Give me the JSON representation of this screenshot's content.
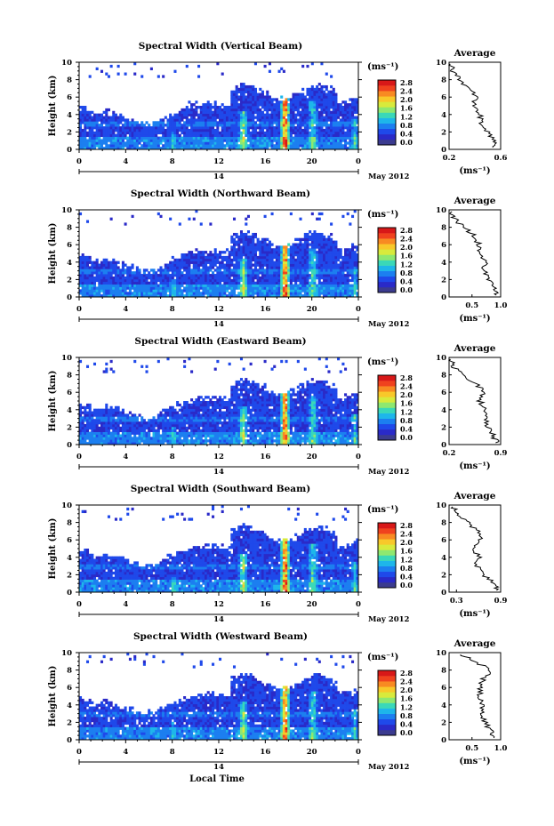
{
  "figure": {
    "xlabel": "Local Time",
    "day_label": "14",
    "month_label": "May 2012",
    "ylabel": "Height (km)",
    "unit_label": "(ms⁻¹)",
    "avg_title": "Average",
    "avg_unit": "(ms⁻¹)"
  },
  "colorbar": {
    "ticks": [
      "0.0",
      "0.4",
      "0.8",
      "1.2",
      "1.6",
      "2.0",
      "2.4",
      "2.8"
    ],
    "colors": [
      "#3b3b8f",
      "#2a2ac8",
      "#1f49ea",
      "#1c7ff0",
      "#1eb6ea",
      "#3ad8b8",
      "#8ee870",
      "#d8ea3c",
      "#f8c82a",
      "#f88a22",
      "#f0421e",
      "#d81818"
    ]
  },
  "chart_data": [
    {
      "type": "heatmap",
      "title": "Spectral Width (Vertical Beam)",
      "xlabel": "Local Time",
      "ylabel": "Height (km)",
      "xlim": [
        0,
        24
      ],
      "ylim": [
        0,
        10
      ],
      "x_ticks": [
        "0",
        "4",
        "8",
        "12",
        "16",
        "20",
        "0"
      ],
      "y_ticks": [
        "0",
        "2",
        "4",
        "6",
        "8",
        "10"
      ],
      "colorbar_range": [
        0.0,
        2.8
      ],
      "average_profile": {
        "xlim": [
          0.2,
          0.6
        ],
        "x_ticks": [
          "0.2",
          "0.6"
        ],
        "points": [
          [
            0.55,
            0.2
          ],
          [
            0.56,
            1.0
          ],
          [
            0.5,
            2.0
          ],
          [
            0.44,
            3.0
          ],
          [
            0.45,
            4.0
          ],
          [
            0.38,
            5.0
          ],
          [
            0.42,
            6.0
          ],
          [
            0.35,
            7.0
          ],
          [
            0.28,
            8.0
          ],
          [
            0.23,
            9.0
          ],
          [
            0.21,
            9.8
          ]
        ]
      }
    },
    {
      "type": "heatmap",
      "title": "Spectral Width (Northward Beam)",
      "xlabel": "Local Time",
      "ylabel": "Height (km)",
      "xlim": [
        0,
        24
      ],
      "ylim": [
        0,
        10
      ],
      "x_ticks": [
        "0",
        "4",
        "8",
        "12",
        "16",
        "20",
        "0"
      ],
      "y_ticks": [
        "0",
        "2",
        "4",
        "6",
        "8",
        "10"
      ],
      "colorbar_range": [
        0.0,
        2.8
      ],
      "average_profile": {
        "xlim": [
          0.1,
          1.0
        ],
        "x_ticks": [
          "0.5",
          "1.0"
        ],
        "points": [
          [
            0.95,
            0.2
          ],
          [
            0.88,
            1.0
          ],
          [
            0.8,
            2.0
          ],
          [
            0.7,
            3.0
          ],
          [
            0.72,
            4.0
          ],
          [
            0.6,
            5.0
          ],
          [
            0.62,
            6.0
          ],
          [
            0.55,
            7.0
          ],
          [
            0.35,
            8.0
          ],
          [
            0.2,
            9.0
          ],
          [
            0.15,
            9.8
          ]
        ]
      }
    },
    {
      "type": "heatmap",
      "title": "Spectral Width (Eastward Beam)",
      "xlabel": "Local Time",
      "ylabel": "Height (km)",
      "xlim": [
        0,
        24
      ],
      "ylim": [
        0,
        10
      ],
      "x_ticks": [
        "0",
        "4",
        "8",
        "12",
        "16",
        "20",
        "0"
      ],
      "y_ticks": [
        "0",
        "2",
        "4",
        "6",
        "8",
        "10"
      ],
      "colorbar_range": [
        0.0,
        2.8
      ],
      "average_profile": {
        "xlim": [
          0.2,
          0.9
        ],
        "x_ticks": [
          "0.2",
          "0.9"
        ],
        "points": [
          [
            0.85,
            0.2
          ],
          [
            0.8,
            1.0
          ],
          [
            0.72,
            2.0
          ],
          [
            0.68,
            3.0
          ],
          [
            0.7,
            4.0
          ],
          [
            0.62,
            5.0
          ],
          [
            0.66,
            6.0
          ],
          [
            0.58,
            7.0
          ],
          [
            0.38,
            8.0
          ],
          [
            0.25,
            9.0
          ],
          [
            0.22,
            9.8
          ]
        ]
      }
    },
    {
      "type": "heatmap",
      "title": "Spectral Width (Southward Beam)",
      "xlabel": "Local Time",
      "ylabel": "Height (km)",
      "xlim": [
        0,
        24
      ],
      "ylim": [
        0,
        10
      ],
      "x_ticks": [
        "0",
        "4",
        "8",
        "12",
        "16",
        "20",
        "0"
      ],
      "y_ticks": [
        "0",
        "2",
        "4",
        "6",
        "8",
        "10"
      ],
      "colorbar_range": [
        0.0,
        2.8
      ],
      "average_profile": {
        "xlim": [
          0.2,
          0.9
        ],
        "x_ticks": [
          "0.3",
          "0.9"
        ],
        "points": [
          [
            0.86,
            0.2
          ],
          [
            0.8,
            1.0
          ],
          [
            0.66,
            2.0
          ],
          [
            0.58,
            3.0
          ],
          [
            0.6,
            4.0
          ],
          [
            0.55,
            5.0
          ],
          [
            0.62,
            6.0
          ],
          [
            0.6,
            7.0
          ],
          [
            0.45,
            8.0
          ],
          [
            0.3,
            9.0
          ],
          [
            0.25,
            9.8
          ]
        ]
      }
    },
    {
      "type": "heatmap",
      "title": "Spectral Width (Westward Beam)",
      "xlabel": "Local Time",
      "ylabel": "Height (km)",
      "xlim": [
        0,
        24
      ],
      "ylim": [
        0,
        10
      ],
      "x_ticks": [
        "0",
        "4",
        "8",
        "12",
        "16",
        "20",
        "0"
      ],
      "y_ticks": [
        "0",
        "2",
        "4",
        "6",
        "8",
        "10"
      ],
      "colorbar_range": [
        0.0,
        2.8
      ],
      "average_profile": {
        "xlim": [
          0.1,
          1.0
        ],
        "x_ticks": [
          "0.5",
          "1.0"
        ],
        "points": [
          [
            0.9,
            0.2
          ],
          [
            0.82,
            1.0
          ],
          [
            0.72,
            2.0
          ],
          [
            0.66,
            3.0
          ],
          [
            0.7,
            4.0
          ],
          [
            0.62,
            5.0
          ],
          [
            0.65,
            6.0
          ],
          [
            0.7,
            7.0
          ],
          [
            0.82,
            8.0
          ],
          [
            0.55,
            9.0
          ],
          [
            0.3,
            9.8
          ]
        ]
      }
    }
  ]
}
